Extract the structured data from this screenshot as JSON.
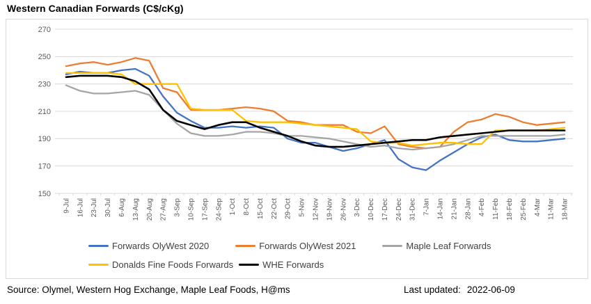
{
  "title": "Western Canadian Forwards (C$/cKg)",
  "footer": {
    "source_line": "Source: Olymel, Western Hog Exchange, Maple Leaf Foods, H@ms",
    "last_updated_label": "Last updated:",
    "last_updated_value": "2022-06-09"
  },
  "axis": {
    "y_ticks": [
      270,
      250,
      230,
      210,
      190,
      170,
      150
    ],
    "grid_color": "#d9d9d9",
    "tick_label_color": "#595959"
  },
  "chart_data": {
    "type": "line",
    "title": "Western Canadian Forwards (C$/cKg)",
    "xlabel": "",
    "ylabel": "",
    "ylim": [
      150,
      270
    ],
    "ytick_step": 20,
    "grid": true,
    "legend_position": "bottom",
    "categories": [
      "9-Jul",
      "16-Jul",
      "23-Jul",
      "30-Jul",
      "6-Aug",
      "13-Aug",
      "20-Aug",
      "27-Aug",
      "3-Sep",
      "10-Sep",
      "17-Sep",
      "24-Sep",
      "1-Oct",
      "8-Oct",
      "15-Oct",
      "22-Oct",
      "29-Oct",
      "5-Nov",
      "12-Nov",
      "19-Nov",
      "26-Nov",
      "3-Dec",
      "10-Dec",
      "17-Dec",
      "24-Dec",
      "31-Dec",
      "7-Jan",
      "14-Jan",
      "21-Jan",
      "28-Jan",
      "4-Feb",
      "11-Feb",
      "18-Feb",
      "25-Feb",
      "4-Mar",
      "11-Mar",
      "18-Mar"
    ],
    "series": [
      {
        "name": "Forwards OlyWest 2020",
        "color": "#4472C4",
        "width": 2.3,
        "values": [
          237,
          239,
          238,
          238,
          240,
          241,
          236,
          221,
          209,
          203,
          198,
          198,
          199,
          198,
          199,
          198,
          190,
          187,
          187,
          184,
          181,
          183,
          186,
          189,
          175,
          169,
          167,
          174,
          180,
          186,
          191,
          193,
          189,
          188,
          188,
          189,
          190
        ]
      },
      {
        "name": "Forwards OlyWest 2021",
        "color": "#ED7D31",
        "width": 2.3,
        "values": [
          243,
          245,
          246,
          244,
          246,
          249,
          247,
          227,
          224,
          211,
          211,
          211,
          212,
          213,
          212,
          210,
          203,
          202,
          200,
          200,
          200,
          195,
          194,
          199,
          186,
          184,
          183,
          184,
          195,
          202,
          204,
          208,
          206,
          202,
          200,
          201,
          202
        ]
      },
      {
        "name": "Maple Leaf Forwards",
        "color": "#A5A5A5",
        "width": 2.3,
        "values": [
          229,
          225,
          223,
          223,
          224,
          225,
          222,
          211,
          201,
          194,
          192,
          192,
          193,
          195,
          195,
          194,
          192,
          192,
          191,
          190,
          188,
          186,
          184,
          185,
          183,
          182,
          183,
          184,
          186,
          189,
          192,
          192,
          192,
          192,
          192,
          192,
          193
        ]
      },
      {
        "name": "Donalds Fine Foods Forwards",
        "color": "#FFC000",
        "width": 2.3,
        "values": [
          238,
          238,
          238,
          238,
          237,
          230,
          230,
          230,
          230,
          212,
          211,
          211,
          211,
          203,
          202,
          202,
          202,
          201,
          200,
          199,
          198,
          197,
          188,
          187,
          187,
          185,
          186,
          187,
          187,
          186,
          186,
          196,
          196,
          196,
          196,
          197,
          198
        ]
      },
      {
        "name": "WHE Forwards",
        "color": "#000000",
        "width": 2.6,
        "values": [
          235,
          236,
          236,
          236,
          235,
          232,
          226,
          211,
          203,
          200,
          197,
          200,
          202,
          202,
          198,
          195,
          192,
          188,
          185,
          184,
          184,
          185,
          186,
          187,
          188,
          189,
          189,
          191,
          192,
          193,
          194,
          195,
          196,
          196,
          196,
          196,
          196
        ]
      }
    ]
  }
}
